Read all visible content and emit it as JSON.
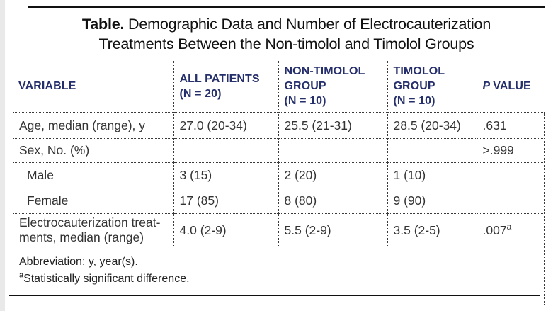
{
  "title": {
    "prefix": "Table.",
    "line1_rest": " Demographic Data and Number of Electrocauterization",
    "line2": "Treatments Between the Non-timolol and Timolol Groups"
  },
  "table": {
    "columns": [
      {
        "label": "VARIABLE"
      },
      {
        "label": "ALL PATIENTS\n(N = 20)"
      },
      {
        "label": "NON-TIMOLOL\nGROUP\n(N = 10)"
      },
      {
        "label": "TIMOLOL\nGROUP\n(N = 10)"
      },
      {
        "italic_prefix": "P ",
        "label": "VALUE"
      }
    ],
    "rows": [
      {
        "variable": "Age, median (range), y",
        "indent": false,
        "values": [
          "27.0 (20-34)",
          "25.5 (21-31)",
          "28.5 (20-34)"
        ],
        "p": ".631",
        "p_sup": ""
      },
      {
        "variable": "Sex, No. (%)",
        "indent": false,
        "values": [
          "",
          "",
          ""
        ],
        "p": ">.999",
        "p_sup": ""
      },
      {
        "variable": "Male",
        "indent": true,
        "values": [
          "3 (15)",
          "2 (20)",
          "1 (10)"
        ],
        "p": "",
        "p_sup": ""
      },
      {
        "variable": "Female",
        "indent": true,
        "values": [
          "17 (85)",
          "8 (80)",
          "9 (90)"
        ],
        "p": "",
        "p_sup": ""
      },
      {
        "variable": "Electrocauterization treat-\nments, median (range)",
        "indent": false,
        "values": [
          "4.0 (2-9)",
          "5.5 (2-9)",
          "3.5 (2-5)"
        ],
        "p": ".007",
        "p_sup": "a"
      }
    ]
  },
  "footnotes": {
    "abbreviation": "Abbreviation: y, year(s).",
    "note_marker": "a",
    "note_text": "Statistically significant difference."
  }
}
